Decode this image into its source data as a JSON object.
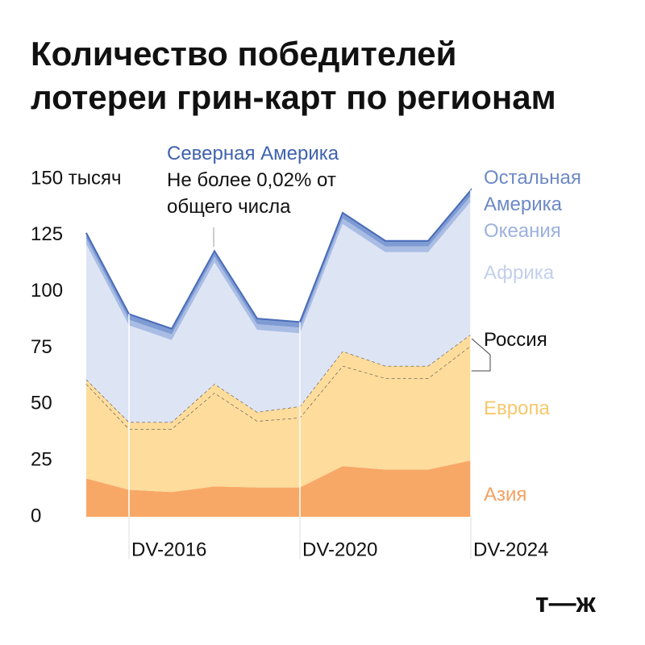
{
  "chart_data": {
    "type": "stacked_area",
    "title": "Количество победителей лотереи грин-карт по регионам",
    "categories": [
      null,
      "DV-2016",
      null,
      null,
      null,
      "DV-2020",
      null,
      null,
      null,
      "DV-2024"
    ],
    "series": [
      {
        "name": "Азия",
        "color": "#f8a866",
        "values": [
          17,
          12,
          11,
          13.5,
          13,
          13,
          22.5,
          21,
          21,
          25
        ]
      },
      {
        "name": "Европа",
        "color": "#fddc9c",
        "values": [
          42,
          27,
          28,
          41.5,
          29.5,
          31,
          44.5,
          40.5,
          40.5,
          51
        ]
      },
      {
        "name": "Россия",
        "color": "#fddc9c",
        "values": [
          2,
          3,
          3,
          4,
          4,
          5,
          6.5,
          5.5,
          5.5,
          5
        ]
      },
      {
        "name": "Африка",
        "color": "#dde4f4",
        "values": [
          60,
          43,
          36.5,
          54,
          36.5,
          32.5,
          56.5,
          50.5,
          50.5,
          59
        ]
      },
      {
        "name": "Океания",
        "color": "#a9bde4",
        "values": [
          2.5,
          2.5,
          2.5,
          2.5,
          2.5,
          2.5,
          2.5,
          2.5,
          2.5,
          2.5
        ]
      },
      {
        "name": "Остальная Америка",
        "color": "#7f9bd4",
        "values": [
          2.5,
          2.5,
          2.5,
          2.5,
          2.5,
          2.5,
          2.5,
          2.5,
          2.5,
          2.5
        ]
      },
      {
        "name": "Северная Америка",
        "color": "#4a6cb8",
        "values": [
          0.02,
          0.02,
          0.02,
          0.02,
          0.02,
          0.02,
          0.02,
          0.02,
          0.02,
          0.02
        ]
      }
    ],
    "annotation": "Не более 0,02% от общего числа",
    "logo": "т—ж",
    "ylim": [
      0,
      150
    ],
    "yticks": [
      0,
      25,
      50,
      75,
      100,
      125,
      {
        "value": 150,
        "label": "150 тысяч"
      }
    ]
  }
}
